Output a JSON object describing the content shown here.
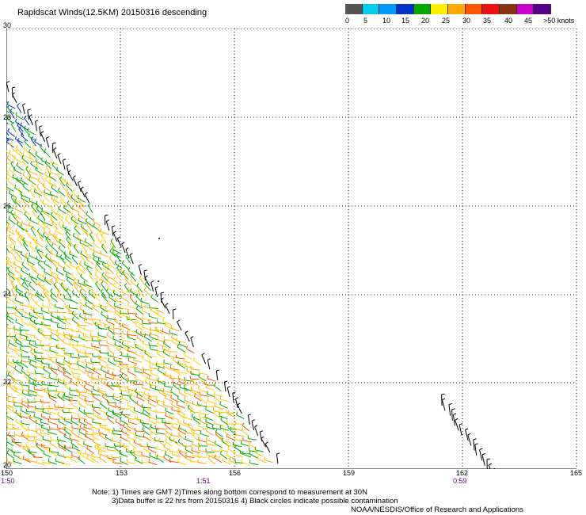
{
  "title": "Rapidscat Winds(12.5KM) 20150316 descending",
  "legend": {
    "colors": [
      "#555555",
      "#00ccee",
      "#0099ff",
      "#0033cc",
      "#00aa00",
      "#ffee00",
      "#ffaa00",
      "#ff5500",
      "#ee1111",
      "#883311",
      "#cc00cc",
      "#550088"
    ],
    "labels": [
      "0",
      "5",
      "10",
      "15",
      "20",
      "25",
      "30",
      "35",
      "40",
      "45",
      ">50 knots"
    ]
  },
  "lat_labels": [
    "30",
    "28",
    "26",
    "24",
    "22",
    "20"
  ],
  "lon_labels": [
    "150",
    "153",
    "156",
    "159",
    "162",
    "165"
  ],
  "time_labels": [
    "1:50",
    "1:51",
    "0:59"
  ],
  "notes": {
    "line1": "Note: 1) Times are GMT 2)Times along bottom correspond to measurement at 30N",
    "line2": "3)Data buffer is 22 hrs from 20150316 4) Black circles indicate possible contamination",
    "line3": "NOAA/NESDIS/Office of Research and Applications"
  }
}
